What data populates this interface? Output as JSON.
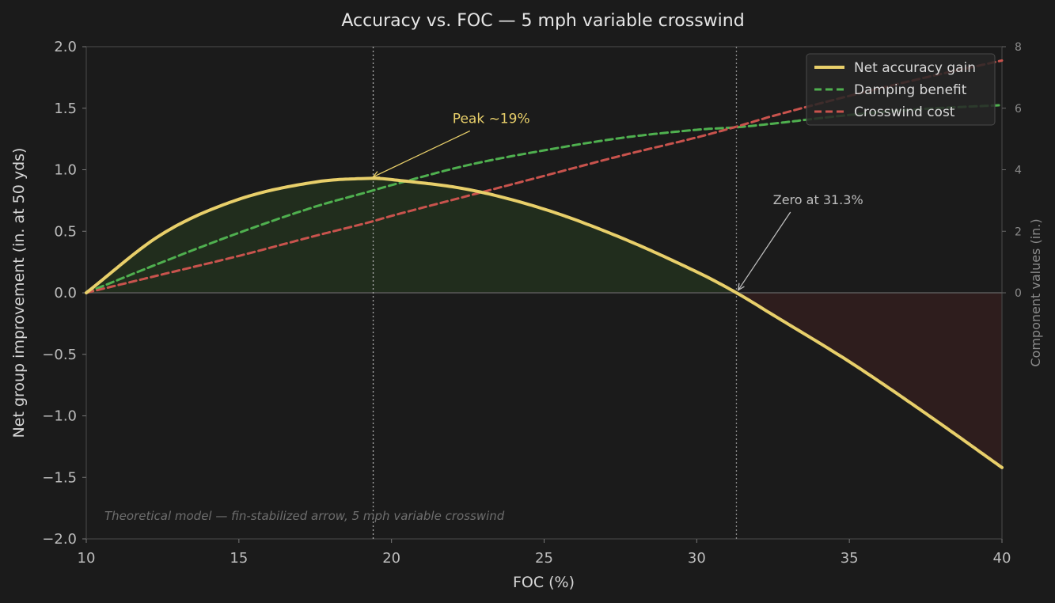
{
  "colors": {
    "background": "#1b1b1b",
    "net": "#e8cf6a",
    "damping": "#4fb04f",
    "crosswind": "#c9534d",
    "positive_fill": "#212d1d",
    "negative_fill": "#2e1d1d"
  },
  "chart_data": {
    "type": "line",
    "title": "Accuracy vs. FOC — 5 mph variable crosswind",
    "xlabel": "FOC (%)",
    "ylabel": "Net group improvement (in. at 50 yds)",
    "y2label": "Component values (in.)",
    "xlim": [
      10,
      40
    ],
    "ylim": [
      -2.0,
      2.0
    ],
    "y2lim": [
      -8,
      8
    ],
    "xticks": [
      "10",
      "15",
      "20",
      "25",
      "30",
      "35",
      "40"
    ],
    "yticks": [
      "2.0",
      "1.5",
      "1.0",
      "0.5",
      "0.0",
      "−0.5",
      "−1.0",
      "−1.5",
      "−2.0"
    ],
    "y2ticks": [
      "8",
      "6",
      "4",
      "2",
      "0"
    ],
    "grid": false,
    "legend_position": "top-right",
    "x": [
      10,
      12.5,
      15,
      17.5,
      19.3,
      20,
      22.5,
      25,
      27.5,
      30,
      31.3,
      32.5,
      35,
      37.5,
      40
    ],
    "series": [
      {
        "name": "Net accuracy gain",
        "axis": "left",
        "style": "solid",
        "values": [
          0.0,
          0.48,
          0.76,
          0.9,
          0.93,
          0.92,
          0.84,
          0.68,
          0.45,
          0.17,
          0.0,
          -0.18,
          -0.56,
          -0.98,
          -1.42
        ]
      },
      {
        "name": "Damping benefit",
        "axis": "right",
        "style": "dashed",
        "values": [
          0.0,
          1.0,
          1.95,
          2.8,
          3.3,
          3.5,
          4.15,
          4.63,
          5.03,
          5.3,
          5.38,
          5.5,
          5.78,
          5.98,
          6.1
        ]
      },
      {
        "name": "Crosswind cost",
        "axis": "right",
        "style": "dashed",
        "values": [
          0.0,
          0.6,
          1.2,
          1.85,
          2.3,
          2.5,
          3.15,
          3.8,
          4.45,
          5.05,
          5.4,
          5.75,
          6.4,
          7.0,
          7.55
        ]
      }
    ],
    "reference_lines_x": [
      19.4,
      31.3
    ],
    "annotations": [
      {
        "text": "Peak ~19%",
        "x": 19.3,
        "y": 0.93,
        "text_x": 22.0,
        "text_y": 1.38
      },
      {
        "text": "Zero at 31.3%",
        "x": 31.3,
        "y": 0.0,
        "text_x": 32.5,
        "text_y": 0.72
      }
    ],
    "note": "Theoretical model — fin-stabilized arrow, 5 mph variable crosswind"
  }
}
